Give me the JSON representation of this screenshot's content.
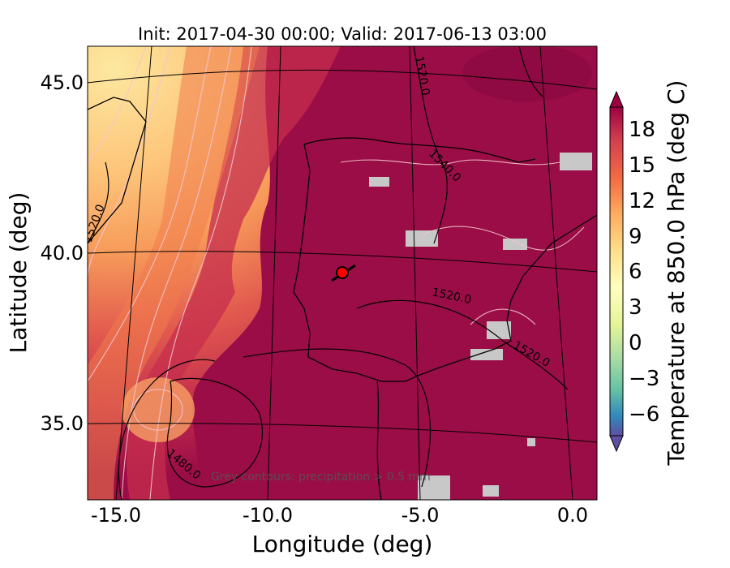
{
  "title": "Init: 2017-04-30 00:00; Valid: 2017-06-13 03:00",
  "xlabel": "Longitude (deg)",
  "ylabel": "Latitude (deg)",
  "x_ticks": [
    "-15.0",
    "-10.0",
    "-5.0",
    "0.0"
  ],
  "y_ticks": [
    "45.0",
    "40.0",
    "35.0"
  ],
  "colorbar": {
    "label": "Temperature at 850.0 hPa (deg C)",
    "ticks": [
      "18",
      "15",
      "12",
      "9",
      "6",
      "3",
      "0",
      "−3",
      "−6"
    ],
    "range": [
      -8,
      20
    ],
    "extend": "both"
  },
  "contour_labels": {
    "north": "1520.0",
    "northeast": "1540.0",
    "west": "1520.0",
    "central": "1520.0",
    "southeast": "1520.0",
    "southwest": "1480.0"
  },
  "note": "Grey contours: precipitation > 0.5 mm",
  "marker": {
    "label": "site-marker",
    "color": "#ff0000",
    "lon": -7.7,
    "lat": 39.4
  },
  "colors": {
    "hot": "#9b0d46",
    "warm": "#d4404e",
    "mid": "#f67a4a",
    "cool": "#fdd185",
    "precip": "#c8c8c8"
  }
}
